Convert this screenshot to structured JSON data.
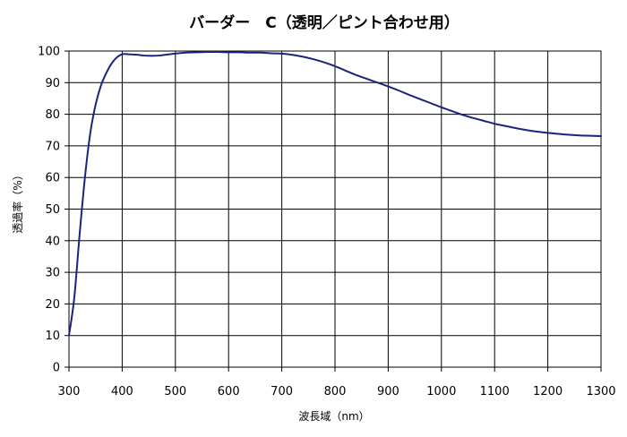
{
  "chart_data": {
    "type": "line",
    "title": "バーダー　C（透明／ピント合わせ用）",
    "xlabel": "波長域（nm）",
    "ylabel": "透過率（%）",
    "xlim": [
      300,
      1300
    ],
    "ylim": [
      0,
      100
    ],
    "x_ticks": [
      300,
      400,
      500,
      600,
      700,
      800,
      900,
      1000,
      1100,
      1200,
      1300
    ],
    "y_ticks": [
      0,
      10,
      20,
      30,
      40,
      50,
      60,
      70,
      80,
      90,
      100
    ],
    "grid": true,
    "legend": "none",
    "series": [
      {
        "color": "#1a237e",
        "x": [
          300,
          310,
          320,
          330,
          340,
          350,
          360,
          370,
          380,
          390,
          400,
          410,
          420,
          430,
          440,
          450,
          460,
          470,
          480,
          500,
          520,
          540,
          560,
          580,
          600,
          620,
          640,
          660,
          680,
          700,
          720,
          740,
          760,
          780,
          800,
          820,
          840,
          860,
          880,
          900,
          920,
          940,
          960,
          980,
          1000,
          1020,
          1040,
          1060,
          1080,
          1100,
          1120,
          1140,
          1160,
          1180,
          1200,
          1220,
          1240,
          1260,
          1280,
          1300
        ],
        "y": [
          10,
          22,
          42,
          60,
          74,
          83,
          89,
          93,
          96,
          98,
          99,
          99,
          98.9,
          98.8,
          98.6,
          98.5,
          98.5,
          98.6,
          98.8,
          99.2,
          99.5,
          99.6,
          99.7,
          99.7,
          99.6,
          99.6,
          99.5,
          99.5,
          99.3,
          99.2,
          98.8,
          98.2,
          97.4,
          96.4,
          95.2,
          93.8,
          92.4,
          91.2,
          90.0,
          88.8,
          87.5,
          86.1,
          84.8,
          83.5,
          82.2,
          81.0,
          79.8,
          78.8,
          77.9,
          77.0,
          76.3,
          75.6,
          75.0,
          74.5,
          74.1,
          73.8,
          73.5,
          73.3,
          73.2,
          73.1
        ]
      }
    ]
  }
}
